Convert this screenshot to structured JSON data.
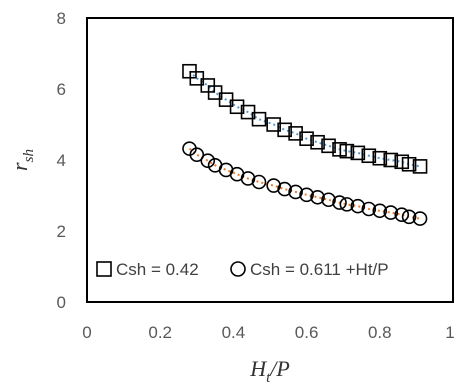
{
  "chart_data": {
    "type": "scatter",
    "xlabel": "Ht/P",
    "xlabel_main": "H",
    "xlabel_sub": "t",
    "xlabel_rest": "/P",
    "ylabel": "rsh",
    "ylabel_main": "r",
    "ylabel_sub": "sh",
    "xlim": [
      0,
      1
    ],
    "ylim": [
      0,
      8
    ],
    "xticks": [
      0,
      0.2,
      0.4,
      0.6,
      0.8,
      1
    ],
    "xtick_labels": [
      "0",
      "0.2",
      "0.4",
      "0.6",
      "0.8",
      "1"
    ],
    "yticks": [
      0,
      2,
      4,
      6,
      8
    ],
    "ytick_labels": [
      "0",
      "2",
      "4",
      "6",
      "8"
    ],
    "grid": false,
    "legend_position": "bottom",
    "series": [
      {
        "name": "Csh = 0.42",
        "marker": "square",
        "trend_color": "#5B9BD5",
        "x": [
          0.28,
          0.3,
          0.33,
          0.35,
          0.38,
          0.41,
          0.44,
          0.47,
          0.51,
          0.54,
          0.57,
          0.6,
          0.63,
          0.66,
          0.69,
          0.71,
          0.74,
          0.77,
          0.8,
          0.83,
          0.86,
          0.88,
          0.91
        ],
        "y": [
          6.5,
          6.3,
          6.1,
          5.9,
          5.7,
          5.5,
          5.35,
          5.15,
          5.0,
          4.85,
          4.75,
          4.6,
          4.5,
          4.4,
          4.3,
          4.25,
          4.2,
          4.12,
          4.05,
          4.0,
          3.95,
          3.88,
          3.82
        ]
      },
      {
        "name": "Csh = 0.611 +Ht/P",
        "marker": "circle",
        "trend_color": "#ED7D31",
        "x": [
          0.28,
          0.3,
          0.33,
          0.35,
          0.38,
          0.41,
          0.44,
          0.47,
          0.51,
          0.54,
          0.57,
          0.6,
          0.63,
          0.66,
          0.69,
          0.71,
          0.74,
          0.77,
          0.8,
          0.83,
          0.86,
          0.88,
          0.91
        ],
        "y": [
          4.32,
          4.15,
          3.98,
          3.85,
          3.72,
          3.6,
          3.48,
          3.38,
          3.28,
          3.18,
          3.1,
          3.02,
          2.95,
          2.88,
          2.8,
          2.75,
          2.7,
          2.62,
          2.57,
          2.52,
          2.46,
          2.4,
          2.35
        ]
      }
    ]
  }
}
